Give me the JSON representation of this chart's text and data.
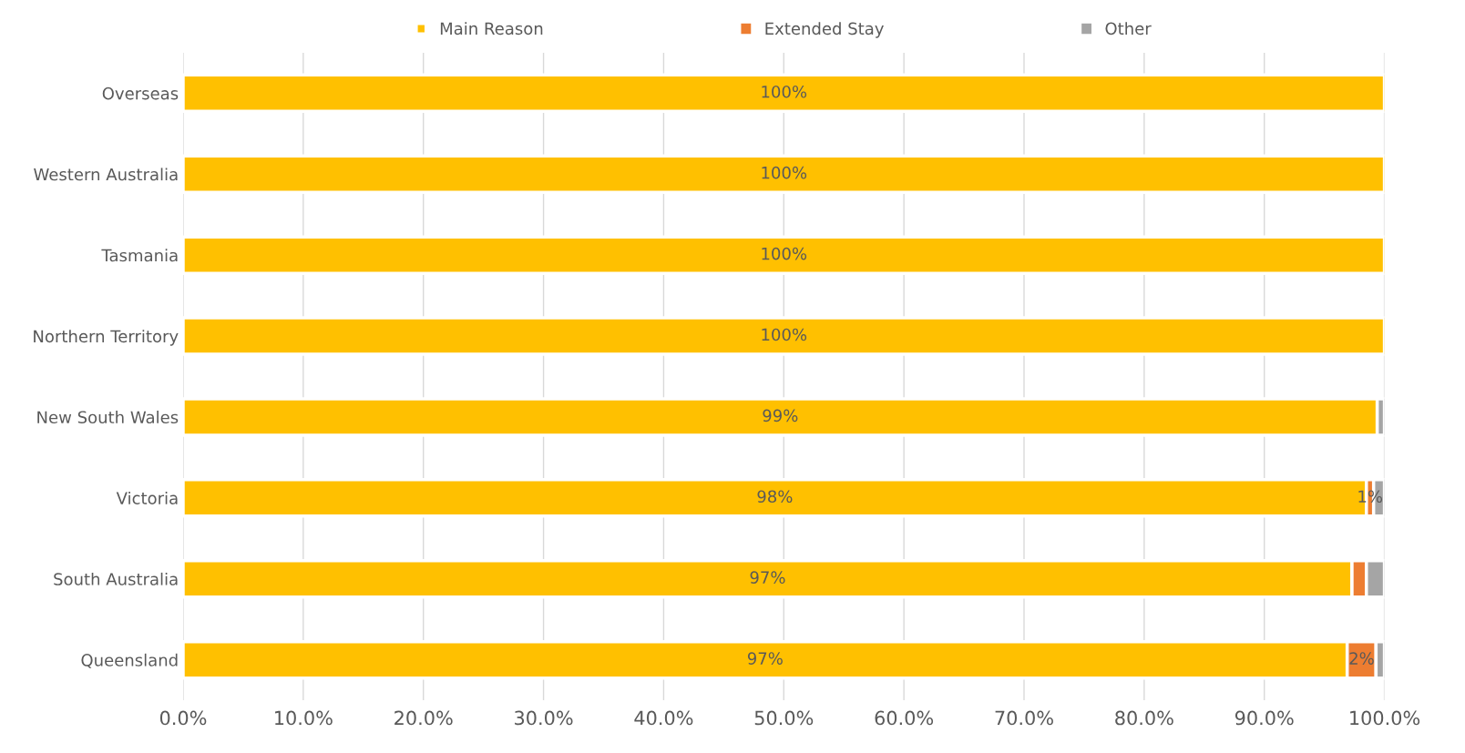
{
  "chart_data": {
    "type": "bar",
    "orientation": "horizontal",
    "stacked": true,
    "categories": [
      "Overseas",
      "Western Australia",
      "Tasmania",
      "Northern Territory",
      "New South Wales",
      "Victoria",
      "South Australia",
      "Queensland"
    ],
    "series": [
      {
        "name": "Main Reason",
        "color": "#ffc000",
        "values": [
          100,
          100,
          100,
          100,
          99.4,
          98.5,
          97.3,
          96.9
        ],
        "value_labels": [
          "100%",
          "100%",
          "100%",
          "100%",
          "99%",
          "98%",
          "97%",
          "97%"
        ]
      },
      {
        "name": "Extended Stay",
        "color": "#ed7d31",
        "values": [
          0,
          0,
          0,
          0,
          0,
          0.6,
          1.2,
          2.4
        ],
        "value_labels": [
          null,
          null,
          null,
          null,
          null,
          "1%",
          null,
          "2%"
        ]
      },
      {
        "name": "Other",
        "color": "#a5a5a5",
        "values": [
          0,
          0,
          0,
          0,
          0.6,
          0.9,
          1.5,
          0.7
        ],
        "value_labels": [
          null,
          null,
          null,
          null,
          null,
          null,
          null,
          null
        ]
      }
    ],
    "xlim": [
      0,
      100
    ],
    "xticks": [
      {
        "value": 0,
        "label": "0.0%"
      },
      {
        "value": 10,
        "label": "10.0%"
      },
      {
        "value": 20,
        "label": "20.0%"
      },
      {
        "value": 30,
        "label": "30.0%"
      },
      {
        "value": 40,
        "label": "40.0%"
      },
      {
        "value": 50,
        "label": "50.0%"
      },
      {
        "value": 60,
        "label": "60.0%"
      },
      {
        "value": 70,
        "label": "70.0%"
      },
      {
        "value": 80,
        "label": "80.0%"
      },
      {
        "value": 90,
        "label": "90.0%"
      },
      {
        "value": 100,
        "label": "100.0%"
      }
    ],
    "grid": "x",
    "legend": "top"
  }
}
